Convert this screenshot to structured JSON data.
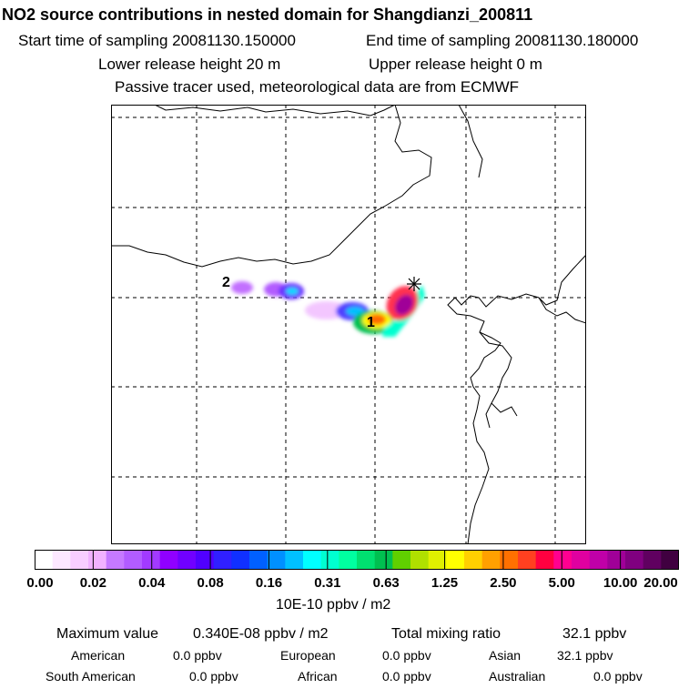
{
  "header": {
    "title": "NO2 source contributions in nested domain for Shangdianzi_200811",
    "start_label": "Start time of sampling 20081130.150000",
    "end_label": "End time of sampling 20081130.180000",
    "lower_label": "Lower release height   20 m",
    "upper_label": "Upper release height    0 m",
    "tracer_label": "Passive tracer used, meteorological data are from ECMWF"
  },
  "map": {
    "source_labels": [
      "1",
      "2"
    ],
    "receptor_marker": "star-icon"
  },
  "colorbar": {
    "ticks": [
      "0.00",
      "0.02",
      "0.04",
      "0.08",
      "0.16",
      "0.31",
      "0.63",
      "1.25",
      "2.50",
      "5.00",
      "10.00",
      "20.00"
    ],
    "colors": [
      "#ffffff",
      "#fde8ff",
      "#f9ceff",
      "#f2b2ff",
      "#c679ff",
      "#b25cff",
      "#a23aff",
      "#9000ff",
      "#7000ff",
      "#5000ff",
      "#3020ff",
      "#1030ff",
      "#0060ff",
      "#0090ff",
      "#00c0ff",
      "#00ffff",
      "#00ffd0",
      "#00ffa0",
      "#00e070",
      "#00c050",
      "#60d000",
      "#b0e000",
      "#e0f000",
      "#ffff00",
      "#ffd000",
      "#ffa000",
      "#ff7000",
      "#ff4020",
      "#ff0040",
      "#ff0090",
      "#e000a0",
      "#c000a8",
      "#a00098",
      "#800080",
      "#600060",
      "#400040"
    ],
    "units": "10E-10 ppbv / m2"
  },
  "footer": {
    "max_label": "Maximum value",
    "max_value": "0.340E-08 ppbv / m2",
    "total_label": "Total mixing ratio",
    "total_value": "32.1 ppbv",
    "contributions": [
      {
        "region": "American",
        "value": "0.0 ppbv"
      },
      {
        "region": "European",
        "value": "0.0 ppbv"
      },
      {
        "region": "Asian",
        "value": "32.1 ppbv"
      },
      {
        "region": "South American",
        "value": "0.0 ppbv"
      },
      {
        "region": "African",
        "value": "0.0 ppbv"
      },
      {
        "region": "Australian",
        "value": "0.0 ppbv"
      }
    ]
  }
}
